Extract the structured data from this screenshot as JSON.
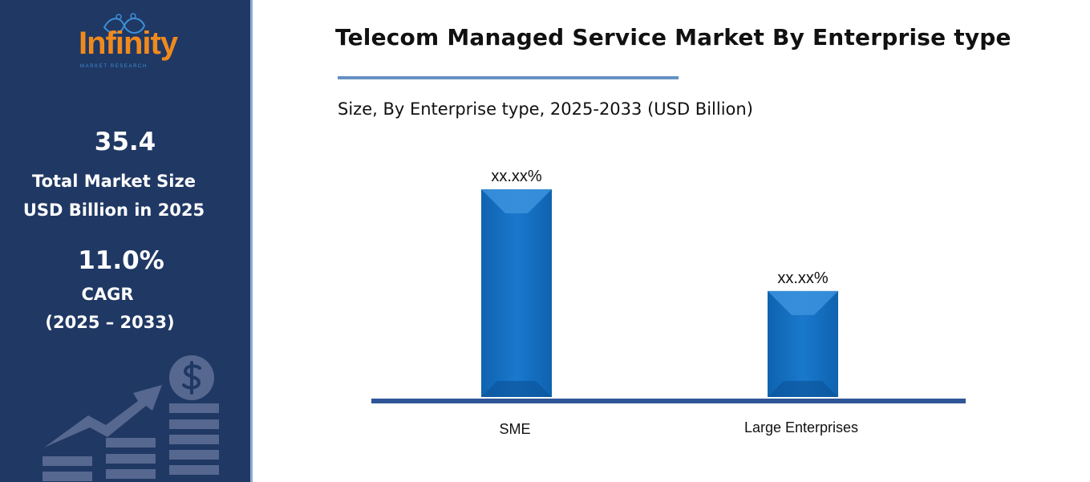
{
  "sidebar": {
    "logo": {
      "word": "Infinity",
      "sub": "MARKET RESEARCH"
    },
    "market_size_value": "35.4",
    "market_size_label_1": "Total Market Size",
    "market_size_label_2": "USD Billion in 2025",
    "cagr_value": "11.0%",
    "cagr_label": "CAGR",
    "cagr_period": "(2025 – 2033)",
    "decoration_icon": "rising-chart-dollar-icon"
  },
  "colors": {
    "sidebar": "#203864",
    "bar": "#1270c2",
    "axis": "#2f5597",
    "accent_rule": "#6592c4",
    "logo": "#f08a1c"
  },
  "chart_data": {
    "type": "bar",
    "title": "Telecom Managed Service Market By Enterprise type",
    "subtitle": "Size, By Enterprise type, 2025-2033 (USD Billion)",
    "categories": [
      "SME",
      "Large Enterprises"
    ],
    "relative_values": [
      1.0,
      0.51
    ],
    "data_labels": [
      "xx.xx%",
      "xx.xx%"
    ],
    "xlabel": "",
    "ylabel": "",
    "grid": false,
    "legend": "none"
  }
}
